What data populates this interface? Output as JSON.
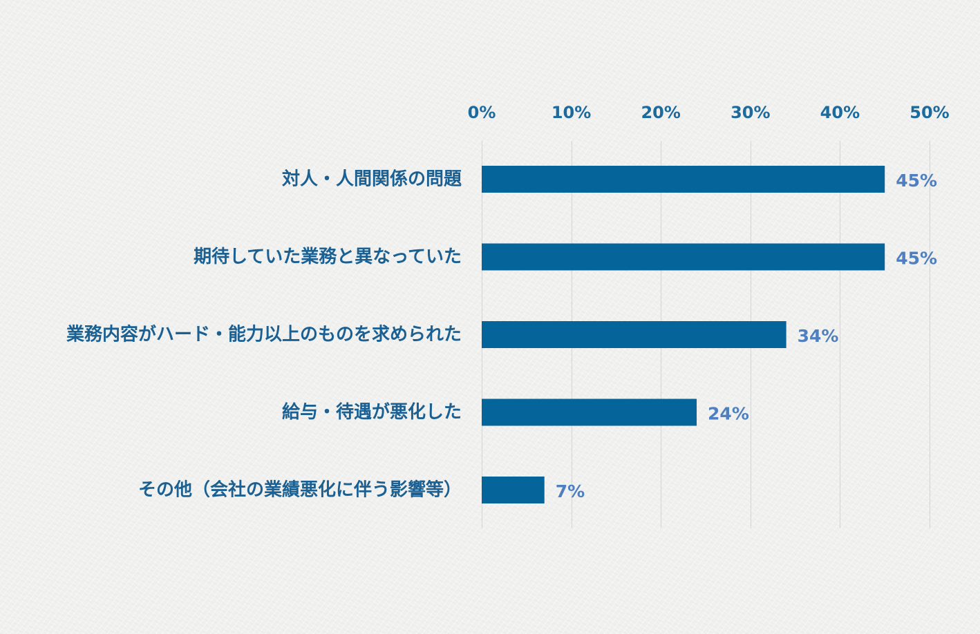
{
  "chart_data": {
    "type": "bar",
    "orientation": "horizontal",
    "categories": [
      "対人・人間関係の問題",
      "期待していた業務と異なっていた",
      "業務内容がハード・能力以上のものを求められた",
      "給与・待遇が悪化した",
      "その他（会社の業績悪化に伴う影響等）"
    ],
    "values": [
      45,
      45,
      34,
      24,
      7
    ],
    "value_labels": [
      "45%",
      "45%",
      "34%",
      "24%",
      "7%"
    ],
    "xlim": [
      0,
      50
    ],
    "x_ticks": [
      0,
      10,
      20,
      30,
      40,
      50
    ],
    "x_tick_labels": [
      "0%",
      "10%",
      "20%",
      "30%",
      "40%",
      "50%"
    ],
    "x_axis_position": "top",
    "grid": true,
    "legend": "none",
    "title": "",
    "xlabel": "",
    "ylabel": "",
    "colors": {
      "bar": "#05659b",
      "tick_label": "#1d6a9c",
      "category_label": "#1b6093",
      "data_label": "#4f7fbf",
      "grid": "#d4d4d4"
    }
  }
}
